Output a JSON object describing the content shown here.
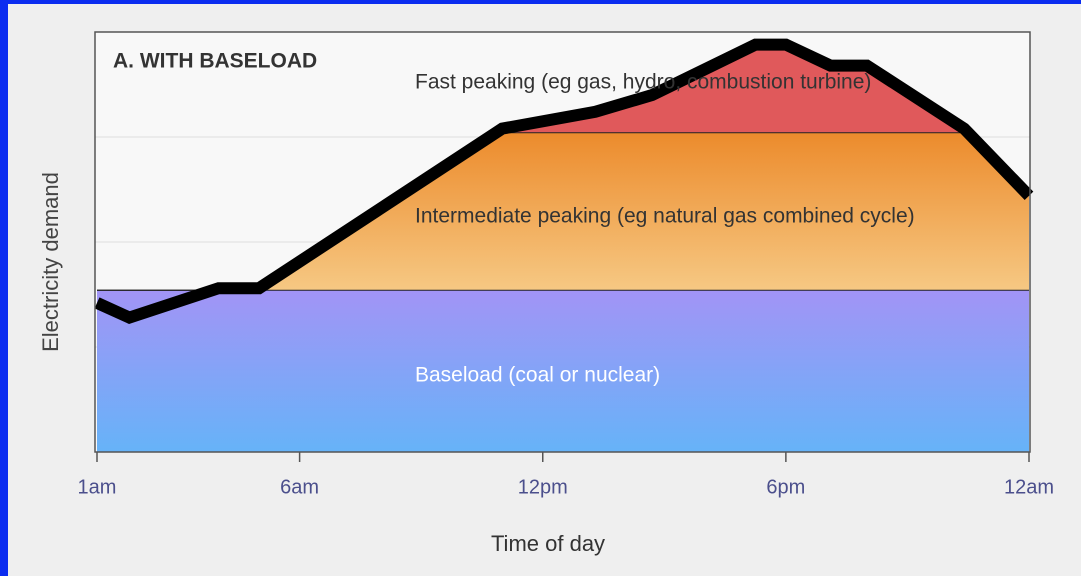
{
  "chart_data": {
    "type": "stacked-area",
    "title": "A. WITH BASELOAD",
    "x_label": "Time of day",
    "y_label": "Electricity demand",
    "x": [
      1,
      1.8,
      4,
      5,
      11,
      13.3,
      14.7,
      17.25,
      18,
      19.1,
      20,
      22.4,
      24
    ],
    "series": [
      {
        "name": "Baseload (coal or nuclear)",
        "color": "#a294f6",
        "color2": "#66b3f8",
        "values": [
          38.5,
          38.5,
          38.5,
          38.5,
          38.5,
          38.5,
          38.5,
          38.5,
          38.5,
          38.5,
          38.5,
          38.5,
          38.5
        ]
      },
      {
        "name": "Intermediate peaking (eg natural gas combined cycle)",
        "color": "#ec8b2c",
        "color2": "#f6c883",
        "values": [
          0,
          0,
          0,
          0,
          37.5,
          37.5,
          37.5,
          37.5,
          37.5,
          37.5,
          37.5,
          37.5,
          22.5
        ]
      },
      {
        "name": "Fast peaking (eg gas, hydro, combustion turbine)",
        "color": "#e0595b",
        "color2": "#e0595b",
        "values": [
          0,
          0,
          0,
          0,
          1,
          5,
          9,
          21,
          21,
          16,
          16,
          1,
          0
        ]
      }
    ],
    "demand": {
      "color": "#000000",
      "values": [
        35.5,
        32,
        39,
        39,
        77,
        81,
        85,
        97,
        97,
        92,
        92,
        77,
        61
      ]
    },
    "xlim": [
      1,
      24
    ],
    "xticks": [
      {
        "value": 1,
        "label": "1am"
      },
      {
        "value": 6,
        "label": "6am"
      },
      {
        "value": 12,
        "label": "12pm"
      },
      {
        "value": 18,
        "label": "6pm"
      },
      {
        "value": 24,
        "label": "12am"
      }
    ],
    "ylim": [
      0,
      100
    ],
    "ygrid": [
      25,
      50,
      75
    ]
  }
}
